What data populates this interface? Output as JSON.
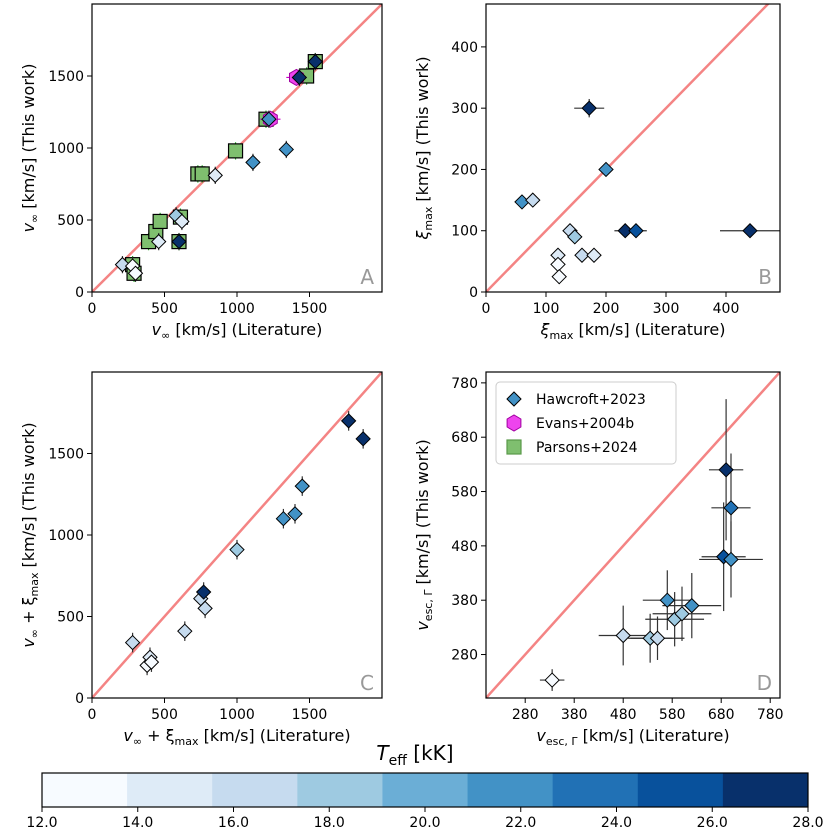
{
  "chart_data": [
    {
      "type": "scatter",
      "panel_label": "A",
      "xlabel": "v∞ [km/s] (Literature)",
      "ylabel": "v∞ [km/s] (This work)",
      "xlim": [
        0,
        2000
      ],
      "ylim": [
        0,
        2000
      ],
      "xticks": [
        0,
        500,
        1000,
        1500
      ],
      "yticks": [
        0,
        500,
        1000,
        1500
      ],
      "one_to_one_line": true,
      "series": [
        {
          "name": "Parsons+2024",
          "marker": "square",
          "points": [
            {
              "x": 280,
              "y": 190,
              "xerr": 30,
              "yerr": 60,
              "teff": 13.0
            },
            {
              "x": 290,
              "y": 130,
              "xerr": 30,
              "yerr": 60,
              "teff": 13.5
            },
            {
              "x": 390,
              "y": 350,
              "xerr": 30,
              "yerr": 60,
              "teff": 18.5
            },
            {
              "x": 440,
              "y": 420,
              "xerr": 30,
              "yerr": 60,
              "teff": 18.5
            },
            {
              "x": 470,
              "y": 490,
              "xerr": 30,
              "yerr": 60,
              "teff": 18.5
            },
            {
              "x": 600,
              "y": 350,
              "xerr": 30,
              "yerr": 60,
              "teff": 21.0
            },
            {
              "x": 610,
              "y": 520,
              "xerr": 30,
              "yerr": 60,
              "teff": 17.0
            },
            {
              "x": 730,
              "y": 820,
              "xerr": 30,
              "yerr": 60,
              "teff": 18.5
            },
            {
              "x": 760,
              "y": 820,
              "xerr": 30,
              "yerr": 60,
              "teff": 18.5
            },
            {
              "x": 990,
              "y": 980,
              "xerr": 30,
              "yerr": 60,
              "teff": 18.5
            },
            {
              "x": 1200,
              "y": 1200,
              "xerr": 30,
              "yerr": 60,
              "teff": 18.5
            },
            {
              "x": 1480,
              "y": 1500,
              "xerr": 30,
              "yerr": 60,
              "teff": 18.5
            },
            {
              "x": 1540,
              "y": 1600,
              "xerr": 30,
              "yerr": 60,
              "teff": 18.5
            }
          ]
        },
        {
          "name": "Evans+2004b",
          "marker": "hexagon",
          "points": [
            {
              "x": 1230,
              "y": 1200,
              "xerr": 70,
              "yerr": 0,
              "teff": 30
            },
            {
              "x": 1410,
              "y": 1490,
              "xerr": 70,
              "yerr": 0,
              "teff": 30
            }
          ]
        },
        {
          "name": "Hawcroft+2023",
          "marker": "diamond",
          "points": [
            {
              "x": 210,
              "y": 190,
              "xerr": 0,
              "yerr": 60,
              "teff": 17.0
            },
            {
              "x": 280,
              "y": 180,
              "xerr": 0,
              "yerr": 60,
              "teff": 13.0
            },
            {
              "x": 300,
              "y": 130,
              "xerr": 0,
              "yerr": 60,
              "teff": 13.5
            },
            {
              "x": 460,
              "y": 350,
              "xerr": 0,
              "yerr": 60,
              "teff": 15.0
            },
            {
              "x": 580,
              "y": 530,
              "xerr": 0,
              "yerr": 60,
              "teff": 18.0
            },
            {
              "x": 600,
              "y": 350,
              "xerr": 0,
              "yerr": 60,
              "teff": 27.0
            },
            {
              "x": 620,
              "y": 490,
              "xerr": 0,
              "yerr": 60,
              "teff": 15.0
            },
            {
              "x": 850,
              "y": 810,
              "xerr": 0,
              "yerr": 60,
              "teff": 15.5
            },
            {
              "x": 1110,
              "y": 900,
              "xerr": 0,
              "yerr": 60,
              "teff": 22.0
            },
            {
              "x": 1220,
              "y": 1200,
              "xerr": 0,
              "yerr": 60,
              "teff": 22.5
            },
            {
              "x": 1340,
              "y": 990,
              "xerr": 0,
              "yerr": 60,
              "teff": 22.0
            },
            {
              "x": 1430,
              "y": 1490,
              "xerr": 0,
              "yerr": 60,
              "teff": 27.0
            },
            {
              "x": 1540,
              "y": 1600,
              "xerr": 0,
              "yerr": 60,
              "teff": 27.0
            }
          ]
        }
      ]
    },
    {
      "type": "scatter",
      "panel_label": "B",
      "xlabel": "ξmax [km/s] (Literature)",
      "ylabel": "ξmax [km/s] (This work)",
      "xlim": [
        0,
        490
      ],
      "ylim": [
        0,
        470
      ],
      "xticks": [
        0,
        100,
        200,
        300,
        400
      ],
      "yticks": [
        0,
        100,
        200,
        300,
        400
      ],
      "one_to_one_line": true,
      "series": [
        {
          "name": "Hawcroft+2023",
          "marker": "diamond",
          "points": [
            {
              "x": 60,
              "y": 147,
              "xerr": 12,
              "yerr": 10,
              "teff": 22.0
            },
            {
              "x": 78,
              "y": 150,
              "xerr": 12,
              "yerr": 10,
              "teff": 17.0
            },
            {
              "x": 120,
              "y": 60,
              "xerr": 12,
              "yerr": 10,
              "teff": 15.0
            },
            {
              "x": 120,
              "y": 45,
              "xerr": 12,
              "yerr": 10,
              "teff": 13.0
            },
            {
              "x": 122,
              "y": 25,
              "xerr": 12,
              "yerr": 12,
              "teff": 12.5
            },
            {
              "x": 140,
              "y": 100,
              "xerr": 12,
              "yerr": 10,
              "teff": 17.0
            },
            {
              "x": 148,
              "y": 90,
              "xerr": 12,
              "yerr": 10,
              "teff": 18.5
            },
            {
              "x": 160,
              "y": 60,
              "xerr": 12,
              "yerr": 10,
              "teff": 17.0
            },
            {
              "x": 180,
              "y": 60,
              "xerr": 12,
              "yerr": 10,
              "teff": 15.0
            },
            {
              "x": 172,
              "y": 300,
              "xerr": 25,
              "yerr": 15,
              "teff": 27.0
            },
            {
              "x": 200,
              "y": 200,
              "xerr": 12,
              "yerr": 10,
              "teff": 22.5
            },
            {
              "x": 232,
              "y": 100,
              "xerr": 18,
              "yerr": 10,
              "teff": 26.5
            },
            {
              "x": 250,
              "y": 100,
              "xerr": 18,
              "yerr": 10,
              "teff": 25.0
            },
            {
              "x": 440,
              "y": 100,
              "xerr": 50,
              "yerr": 10,
              "teff": 27.0
            }
          ]
        }
      ]
    },
    {
      "type": "scatter",
      "panel_label": "C",
      "xlabel": "v∞ + ξmax [km/s] (Literature)",
      "ylabel": "v∞ + ξmax [km/s] (This work)",
      "xlim": [
        0,
        2000
      ],
      "ylim": [
        0,
        2000
      ],
      "xticks": [
        0,
        500,
        1000,
        1500
      ],
      "yticks": [
        0,
        500,
        1000,
        1500
      ],
      "one_to_one_line": true,
      "series": [
        {
          "name": "Hawcroft+2023",
          "marker": "diamond",
          "points": [
            {
              "x": 280,
              "y": 340,
              "xerr": 0,
              "yerr": 60,
              "teff": 17.0
            },
            {
              "x": 380,
              "y": 200,
              "xerr": 0,
              "yerr": 60,
              "teff": 13.0
            },
            {
              "x": 400,
              "y": 250,
              "xerr": 0,
              "yerr": 60,
              "teff": 14.5
            },
            {
              "x": 410,
              "y": 220,
              "xerr": 0,
              "yerr": 60,
              "teff": 13.5
            },
            {
              "x": 640,
              "y": 410,
              "xerr": 0,
              "yerr": 60,
              "teff": 16.5
            },
            {
              "x": 750,
              "y": 610,
              "xerr": 0,
              "yerr": 60,
              "teff": 17.0
            },
            {
              "x": 770,
              "y": 650,
              "xerr": 0,
              "yerr": 60,
              "teff": 27.0
            },
            {
              "x": 780,
              "y": 550,
              "xerr": 0,
              "yerr": 60,
              "teff": 16.5
            },
            {
              "x": 1000,
              "y": 910,
              "xerr": 0,
              "yerr": 60,
              "teff": 17.5
            },
            {
              "x": 1320,
              "y": 1100,
              "xerr": 0,
              "yerr": 60,
              "teff": 22.0
            },
            {
              "x": 1400,
              "y": 1130,
              "xerr": 0,
              "yerr": 60,
              "teff": 22.0
            },
            {
              "x": 1450,
              "y": 1300,
              "xerr": 0,
              "yerr": 60,
              "teff": 22.5
            },
            {
              "x": 1770,
              "y": 1700,
              "xerr": 0,
              "yerr": 60,
              "teff": 27.0
            },
            {
              "x": 1870,
              "y": 1590,
              "xerr": 0,
              "yerr": 60,
              "teff": 27.0
            }
          ]
        }
      ]
    },
    {
      "type": "scatter",
      "panel_label": "D",
      "xlabel": "vesc,Γ [km/s] (Literature)",
      "ylabel": "vesc,Γ [km/s] (This work)",
      "xlim": [
        200,
        800
      ],
      "ylim": [
        200,
        800
      ],
      "xticks": [
        280,
        380,
        480,
        580,
        680,
        780
      ],
      "yticks": [
        280,
        380,
        480,
        580,
        680,
        780
      ],
      "one_to_one_line": true,
      "legend": {
        "placement": "top-left",
        "entries": [
          "Hawcroft+2023",
          "Evans+2004b",
          "Parsons+2024"
        ]
      },
      "series": [
        {
          "name": "Hawcroft+2023",
          "marker": "diamond",
          "points": [
            {
              "x": 335,
              "y": 233,
              "xerr": 25,
              "yerr": 20,
              "teff": 12.5
            },
            {
              "x": 480,
              "y": 315,
              "xerr": 50,
              "yerr": 55,
              "teff": 17.0
            },
            {
              "x": 535,
              "y": 310,
              "xerr": 45,
              "yerr": 45,
              "teff": 18.0
            },
            {
              "x": 550,
              "y": 310,
              "xerr": 55,
              "yerr": 40,
              "teff": 17.0
            },
            {
              "x": 570,
              "y": 380,
              "xerr": 50,
              "yerr": 55,
              "teff": 21.0
            },
            {
              "x": 585,
              "y": 345,
              "xerr": 60,
              "yerr": 50,
              "teff": 18.5
            },
            {
              "x": 600,
              "y": 355,
              "xerr": 60,
              "yerr": 50,
              "teff": 18.5
            },
            {
              "x": 620,
              "y": 370,
              "xerr": 60,
              "yerr": 60,
              "teff": 22.0
            },
            {
              "x": 685,
              "y": 460,
              "xerr": 45,
              "yerr": 100,
              "teff": 25.0
            },
            {
              "x": 690,
              "y": 620,
              "xerr": 35,
              "yerr": 130,
              "teff": 27.0
            },
            {
              "x": 700,
              "y": 550,
              "xerr": 40,
              "yerr": 100,
              "teff": 24.0
            },
            {
              "x": 700,
              "y": 455,
              "xerr": 65,
              "yerr": 70,
              "teff": 22.5
            }
          ]
        }
      ]
    }
  ],
  "markers": {
    "hawcroft": "diamond",
    "evans": "hexagon",
    "parsons": "square"
  },
  "colors": {
    "one_to_one": "#f48484",
    "evans_marker": "#ee44ee",
    "evans_err": "#cc00cc",
    "parsons_marker": "#7fbf6f",
    "parsons_err": "#22aa22",
    "errbar": "#333333"
  },
  "colorbar": {
    "label": "Teff [kK]",
    "label_main": "T",
    "label_sub": "eff",
    "label_unit": " [kK]",
    "ticks": [
      "12.0",
      "14.0",
      "16.0",
      "18.0",
      "20.0",
      "22.0",
      "24.0",
      "26.0",
      "28.0"
    ],
    "range": [
      12,
      28
    ],
    "colors": [
      "#f7fbff",
      "#deebf7",
      "#c6dbef",
      "#9ecae1",
      "#6baed6",
      "#4292c6",
      "#2171b5",
      "#08519c",
      "#08306b"
    ]
  },
  "axis_text": {
    "A": {
      "xlabel": {
        "pre": "v",
        "sub": "∞",
        "post": " [km/s] (Literature)"
      },
      "ylabel": {
        "pre": "v",
        "sub": "∞",
        "post": " [km/s] (This work)"
      }
    },
    "B": {
      "xlabel": {
        "pre": "ξ",
        "sub": "max",
        "post": " [km/s] (Literature)"
      },
      "ylabel": {
        "pre": "ξ",
        "sub": "max",
        "post": " [km/s] (This work)"
      }
    },
    "C": {
      "xlabel": {
        "pre": "v",
        "sub": "∞",
        "mid": " + ξ",
        "sub2": "max",
        "post": " [km/s] (Literature)"
      },
      "ylabel": {
        "pre": "v",
        "sub": "∞",
        "mid": " + ξ",
        "sub2": "max",
        "post": " [km/s] (This work)"
      }
    },
    "D": {
      "xlabel": {
        "pre": "v",
        "sub": "esc, Γ",
        "post": " [km/s] (Literature)"
      },
      "ylabel": {
        "pre": "v",
        "sub": "esc, Γ",
        "post": " [km/s] (This work)"
      }
    }
  }
}
